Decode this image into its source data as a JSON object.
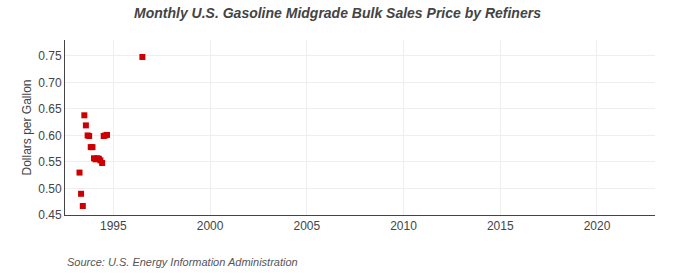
{
  "chart_data": {
    "type": "scatter",
    "title": "Monthly U.S. Gasoline Midgrade Bulk Sales Price by Refiners",
    "ylabel": "Dollars per Gallon",
    "annotations": [
      "Source: U.S. Energy Information Administration"
    ],
    "x": [
      1993.25,
      1993.33,
      1993.42,
      1993.5,
      1993.58,
      1993.67,
      1993.75,
      1993.83,
      1993.92,
      1994.0,
      1994.08,
      1994.17,
      1994.25,
      1994.33,
      1994.42,
      1994.5,
      1994.58,
      1994.67,
      1996.5
    ],
    "values": [
      0.53,
      0.49,
      0.467,
      0.638,
      0.619,
      0.6,
      0.599,
      0.578,
      0.578,
      0.557,
      0.555,
      0.557,
      0.556,
      0.553,
      0.548,
      0.599,
      0.6,
      0.601,
      0.748
    ],
    "color": "#cc0000",
    "marker": "square",
    "xlim": [
      1992.5,
      2023
    ],
    "ylim": [
      0.45,
      0.78
    ],
    "xticks": [
      1995,
      2000,
      2005,
      2010,
      2015,
      2020
    ],
    "yticks": [
      0.45,
      {
        "value": 0.5,
        "label": "0.50"
      },
      0.55,
      {
        "value": 0.6,
        "label": "0.60"
      },
      0.65,
      {
        "value": 0.7,
        "label": "0.70"
      },
      0.75
    ],
    "grid": true
  }
}
